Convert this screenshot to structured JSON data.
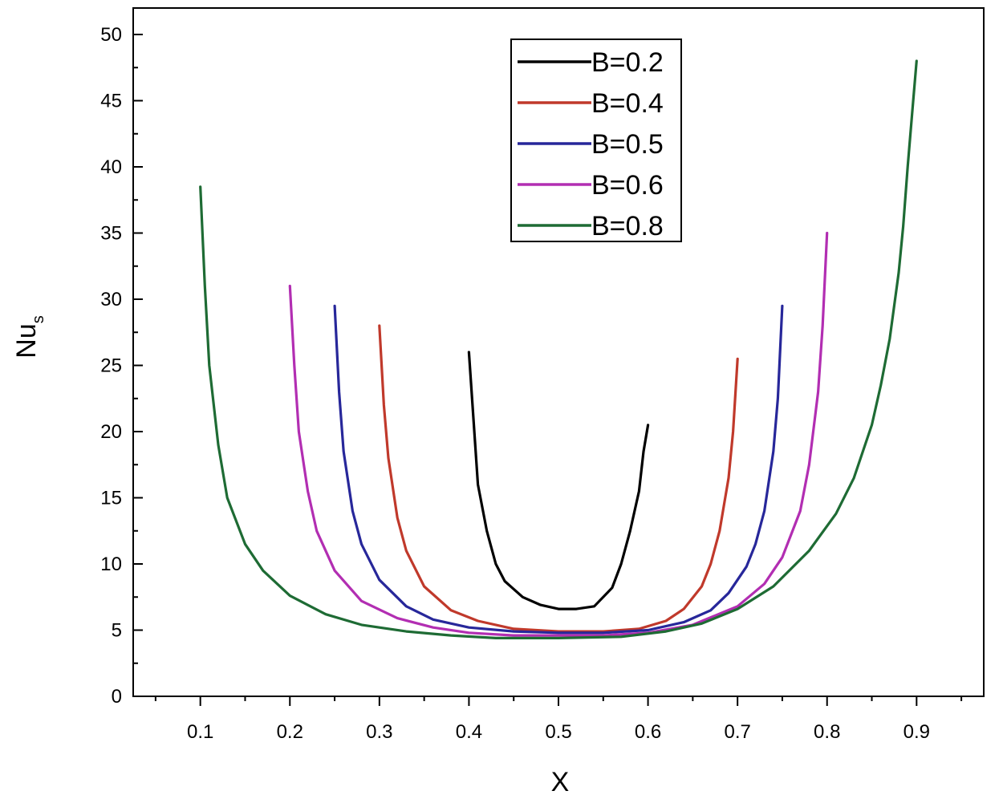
{
  "chart_data": {
    "type": "line",
    "xlabel": "X",
    "ylabel_main": "Nu",
    "ylabel_sub": "s",
    "xlim": [
      0.025,
      0.975
    ],
    "ylim": [
      0,
      52
    ],
    "x_ticks": [
      "0.1",
      "0.2",
      "0.3",
      "0.4",
      "0.5",
      "0.6",
      "0.7",
      "0.8",
      "0.9"
    ],
    "y_ticks": [
      "0",
      "5",
      "10",
      "15",
      "20",
      "25",
      "30",
      "35",
      "40",
      "45",
      "50"
    ],
    "legend_position": "top-center",
    "series": [
      {
        "name": "B=0.2",
        "color": "#000000",
        "x": [
          0.4,
          0.405,
          0.41,
          0.42,
          0.43,
          0.44,
          0.46,
          0.48,
          0.5,
          0.52,
          0.54,
          0.56,
          0.57,
          0.58,
          0.59,
          0.595,
          0.6
        ],
        "y": [
          26.0,
          21.0,
          16.0,
          12.5,
          10.0,
          8.7,
          7.5,
          6.9,
          6.6,
          6.6,
          6.8,
          8.2,
          10.0,
          12.5,
          15.5,
          18.5,
          20.5
        ]
      },
      {
        "name": "B=0.4",
        "color": "#c0392b",
        "x": [
          0.3,
          0.305,
          0.31,
          0.32,
          0.33,
          0.35,
          0.38,
          0.41,
          0.45,
          0.5,
          0.55,
          0.59,
          0.62,
          0.64,
          0.66,
          0.67,
          0.68,
          0.69,
          0.695,
          0.7
        ],
        "y": [
          28.0,
          22.0,
          18.0,
          13.5,
          11.0,
          8.3,
          6.5,
          5.7,
          5.1,
          4.9,
          4.9,
          5.1,
          5.7,
          6.6,
          8.3,
          10.0,
          12.5,
          16.5,
          20.0,
          25.5
        ]
      },
      {
        "name": "B=0.5",
        "color": "#27279a",
        "x": [
          0.25,
          0.255,
          0.26,
          0.27,
          0.28,
          0.3,
          0.33,
          0.36,
          0.4,
          0.45,
          0.5,
          0.55,
          0.6,
          0.64,
          0.67,
          0.69,
          0.71,
          0.72,
          0.73,
          0.74,
          0.745,
          0.75
        ],
        "y": [
          29.5,
          23.0,
          18.5,
          14.0,
          11.5,
          8.8,
          6.8,
          5.8,
          5.2,
          4.9,
          4.8,
          4.8,
          5.0,
          5.6,
          6.5,
          7.8,
          9.8,
          11.5,
          14.0,
          18.5,
          22.5,
          29.5
        ]
      },
      {
        "name": "B=0.6",
        "color": "#b22eb2",
        "x": [
          0.2,
          0.205,
          0.21,
          0.22,
          0.23,
          0.25,
          0.28,
          0.32,
          0.36,
          0.4,
          0.45,
          0.5,
          0.55,
          0.6,
          0.65,
          0.7,
          0.73,
          0.75,
          0.77,
          0.78,
          0.79,
          0.795,
          0.8
        ],
        "y": [
          31.0,
          25.0,
          20.0,
          15.5,
          12.5,
          9.5,
          7.2,
          5.9,
          5.2,
          4.8,
          4.6,
          4.6,
          4.6,
          4.8,
          5.4,
          6.8,
          8.5,
          10.5,
          14.0,
          17.5,
          23.0,
          28.0,
          35.0
        ]
      },
      {
        "name": "B=0.8",
        "color": "#1e6b34",
        "x": [
          0.1,
          0.105,
          0.11,
          0.12,
          0.13,
          0.15,
          0.17,
          0.2,
          0.24,
          0.28,
          0.33,
          0.38,
          0.43,
          0.5,
          0.57,
          0.62,
          0.66,
          0.7,
          0.74,
          0.78,
          0.81,
          0.83,
          0.85,
          0.86,
          0.87,
          0.88,
          0.885,
          0.89,
          0.895,
          0.9
        ],
        "y": [
          38.5,
          31.0,
          25.0,
          19.0,
          15.0,
          11.5,
          9.5,
          7.6,
          6.2,
          5.4,
          4.9,
          4.6,
          4.4,
          4.4,
          4.5,
          4.9,
          5.5,
          6.6,
          8.3,
          11.0,
          13.8,
          16.5,
          20.5,
          23.5,
          27.0,
          32.0,
          35.5,
          40.0,
          44.0,
          48.0
        ]
      }
    ]
  }
}
